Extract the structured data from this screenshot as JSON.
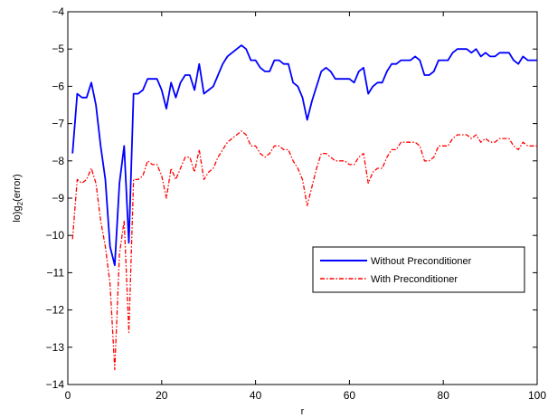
{
  "chart_data": {
    "type": "line",
    "xlabel": "r",
    "ylabel_main": "lo)g",
    "ylabel_sub": "2",
    "ylabel_tail": "(error)",
    "xlim": [
      0,
      100
    ],
    "ylim": [
      -14,
      -4
    ],
    "xticks": [
      "0",
      "20",
      "40",
      "60",
      "80",
      "100"
    ],
    "yticks": [
      "−14",
      "−13",
      "−12",
      "−11",
      "−10",
      "−9",
      "−8",
      "−7",
      "−6",
      "−5",
      "−4"
    ],
    "legend_position": "right",
    "series": [
      {
        "name": "Without Preconditioner",
        "color": "#0000ff",
        "style": "solid",
        "x": [
          1,
          2,
          3,
          4,
          5,
          6,
          7,
          8,
          9,
          10,
          11,
          12,
          13,
          14,
          15,
          16,
          17,
          18,
          19,
          20,
          21,
          22,
          23,
          24,
          25,
          26,
          27,
          28,
          29,
          30,
          31,
          32,
          33,
          34,
          35,
          36,
          37,
          38,
          39,
          40,
          41,
          42,
          43,
          44,
          45,
          46,
          47,
          48,
          49,
          50,
          51,
          52,
          53,
          54,
          55,
          56,
          57,
          58,
          59,
          60,
          61,
          62,
          63,
          64,
          65,
          66,
          67,
          68,
          69,
          70,
          71,
          72,
          73,
          74,
          75,
          76,
          77,
          78,
          79,
          80,
          81,
          82,
          83,
          84,
          85,
          86,
          87,
          88,
          89,
          90,
          91,
          92,
          93,
          94,
          95,
          96,
          97,
          98,
          99,
          100
        ],
        "y": [
          -7.8,
          -6.2,
          -6.3,
          -6.3,
          -5.9,
          -6.5,
          -7.6,
          -8.5,
          -10.3,
          -10.8,
          -8.6,
          -7.6,
          -10.2,
          -6.2,
          -6.2,
          -6.1,
          -5.8,
          -5.8,
          -5.8,
          -6.1,
          -6.6,
          -5.9,
          -6.3,
          -5.9,
          -5.7,
          -5.7,
          -6.1,
          -5.4,
          -6.2,
          -6.1,
          -6.0,
          -5.7,
          -5.4,
          -5.2,
          -5.1,
          -5.0,
          -4.9,
          -5.0,
          -5.3,
          -5.3,
          -5.5,
          -5.6,
          -5.6,
          -5.3,
          -5.3,
          -5.4,
          -5.4,
          -5.9,
          -6.0,
          -6.3,
          -6.9,
          -6.4,
          -6.0,
          -5.6,
          -5.5,
          -5.6,
          -5.8,
          -5.8,
          -5.8,
          -5.8,
          -5.9,
          -5.6,
          -5.5,
          -6.2,
          -6.0,
          -5.9,
          -5.9,
          -5.6,
          -5.4,
          -5.4,
          -5.3,
          -5.3,
          -5.3,
          -5.2,
          -5.3,
          -5.7,
          -5.7,
          -5.6,
          -5.3,
          -5.3,
          -5.3,
          -5.1,
          -5.0,
          -5.0,
          -5.0,
          -5.1,
          -5.0,
          -5.2,
          -5.1,
          -5.2,
          -5.2,
          -5.1,
          -5.1,
          -5.1,
          -5.3,
          -5.4,
          -5.2,
          -5.3,
          -5.3,
          -5.3
        ]
      },
      {
        "name": "With Preconditioner",
        "color": "#ff0000",
        "style": "dashdot",
        "x": [
          1,
          2,
          3,
          4,
          5,
          6,
          7,
          8,
          9,
          10,
          11,
          12,
          13,
          14,
          15,
          16,
          17,
          18,
          19,
          20,
          21,
          22,
          23,
          24,
          25,
          26,
          27,
          28,
          29,
          30,
          31,
          32,
          33,
          34,
          35,
          36,
          37,
          38,
          39,
          40,
          41,
          42,
          43,
          44,
          45,
          46,
          47,
          48,
          49,
          50,
          51,
          52,
          53,
          54,
          55,
          56,
          57,
          58,
          59,
          60,
          61,
          62,
          63,
          64,
          65,
          66,
          67,
          68,
          69,
          70,
          71,
          72,
          73,
          74,
          75,
          76,
          77,
          78,
          79,
          80,
          81,
          82,
          83,
          84,
          85,
          86,
          87,
          88,
          89,
          90,
          91,
          92,
          93,
          94,
          95,
          96,
          97,
          98,
          99,
          100
        ],
        "y": [
          -10.1,
          -8.5,
          -8.6,
          -8.5,
          -8.2,
          -8.6,
          -9.6,
          -10.3,
          -11.3,
          -13.6,
          -10.5,
          -9.6,
          -12.6,
          -8.5,
          -8.5,
          -8.4,
          -8.0,
          -8.1,
          -8.1,
          -8.4,
          -9.0,
          -8.2,
          -8.5,
          -8.2,
          -7.9,
          -7.9,
          -8.3,
          -7.7,
          -8.5,
          -8.3,
          -8.2,
          -7.9,
          -7.7,
          -7.5,
          -7.4,
          -7.3,
          -7.2,
          -7.3,
          -7.6,
          -7.6,
          -7.8,
          -7.9,
          -7.8,
          -7.6,
          -7.6,
          -7.7,
          -7.7,
          -8.0,
          -8.2,
          -8.5,
          -9.2,
          -8.7,
          -8.2,
          -7.8,
          -7.8,
          -7.9,
          -8.0,
          -8.0,
          -8.0,
          -8.1,
          -8.1,
          -7.9,
          -7.8,
          -8.6,
          -8.3,
          -8.2,
          -8.2,
          -7.9,
          -7.7,
          -7.7,
          -7.5,
          -7.5,
          -7.5,
          -7.5,
          -7.6,
          -8.0,
          -8.0,
          -7.9,
          -7.6,
          -7.6,
          -7.6,
          -7.4,
          -7.3,
          -7.3,
          -7.3,
          -7.4,
          -7.3,
          -7.5,
          -7.4,
          -7.5,
          -7.5,
          -7.4,
          -7.4,
          -7.4,
          -7.6,
          -7.7,
          -7.5,
          -7.6,
          -7.6,
          -7.6
        ]
      }
    ]
  }
}
